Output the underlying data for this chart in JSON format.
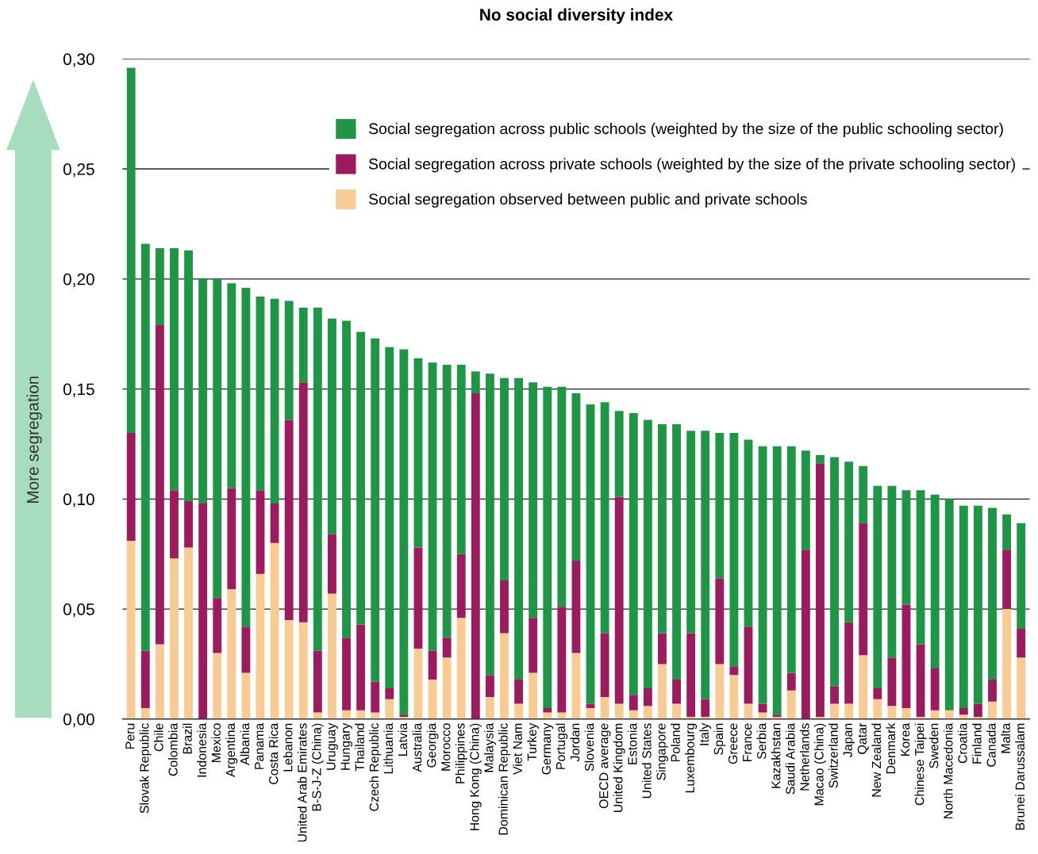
{
  "chart_data": {
    "type": "bar",
    "stacked": true,
    "title": "No social diversity index",
    "categories": [
      "Peru",
      "Slovak Republic",
      "Chile",
      "Colombia",
      "Brazil",
      "Indonesia",
      "Mexico",
      "Argentina",
      "Albania",
      "Panama",
      "Costa Rica",
      "Lebanon",
      "United Arab Emirates",
      "B-S-J-Z (China)",
      "Uruguay",
      "Hungary",
      "Thailand",
      "Czech Republic",
      "Lithuania",
      "Latvia",
      "Australia",
      "Georgia",
      "Morocco",
      "Philippines",
      "Hong Kong (China)",
      "Malaysia",
      "Dominican Republic",
      "Viet Nam",
      "Turkey",
      "Germany",
      "Portugal",
      "Jordan",
      "Slovenia",
      "OECD average",
      "United Kingdom",
      "Estonia",
      "United States",
      "Singapore",
      "Poland",
      "Luxembourg",
      "Italy",
      "Spain",
      "Greece",
      "France",
      "Serbia",
      "Kazakhstan",
      "Saudi Arabia",
      "Netherlands",
      "Macao (China)",
      "Switzerland",
      "Japan",
      "Qatar",
      "New Zealand",
      "Denmark",
      "Korea",
      "Chinese Taipei",
      "Sweden",
      "North Macedonia",
      "Croatia",
      "Finland",
      "Canada",
      "Malta",
      "Brunei Darussalam"
    ],
    "series": [
      {
        "name": "Social segregation observed between public and private schools",
        "color": "#f8cb94",
        "values": [
          0.081,
          0.005,
          0.034,
          0.073,
          0.078,
          0,
          0.03,
          0.059,
          0.021,
          0.066,
          0.08,
          0.045,
          0.044,
          0.003,
          0.057,
          0.004,
          0.004,
          0.003,
          0.009,
          0.001,
          0.032,
          0.018,
          0.028,
          0.046,
          0,
          0.01,
          0.039,
          0.007,
          0.021,
          0.003,
          0.003,
          0.03,
          0.005,
          0.01,
          0.007,
          0.004,
          0.006,
          0.025,
          0.007,
          0.001,
          0.001,
          0.025,
          0.02,
          0.007,
          0.003,
          0.001,
          0.013,
          0,
          0.001,
          0.007,
          0.007,
          0.029,
          0.009,
          0.006,
          0.005,
          0.001,
          0.004,
          0.004,
          0.002,
          0.001,
          0.008,
          0.05,
          0.028
        ]
      },
      {
        "name": "Social segregation across private schools (weighted by the size of the private schooling sector)",
        "color": "#9c1a5e",
        "values": [
          0.049,
          0.026,
          0.145,
          0.031,
          0.021,
          0.098,
          0.025,
          0.046,
          0.021,
          0.038,
          0.018,
          0.091,
          0.109,
          0.028,
          0.027,
          0.033,
          0.039,
          0.014,
          0.005,
          0.001,
          0.046,
          0.013,
          0.009,
          0.029,
          0.148,
          0.01,
          0.024,
          0.011,
          0.025,
          0.002,
          0.048,
          0.042,
          0.002,
          0.029,
          0.094,
          0.007,
          0.008,
          0.014,
          0.011,
          0.038,
          0.008,
          0.039,
          0.004,
          0.035,
          0.004,
          0.001,
          0.008,
          0.077,
          0.115,
          0.008,
          0.037,
          0.06,
          0.005,
          0.022,
          0.047,
          0.033,
          0.019,
          0,
          0.003,
          0.006,
          0.01,
          0.027,
          0.013
        ]
      },
      {
        "name": "Social segregation across public schools (weighted by the size of the public schooling sector)",
        "color": "#1e9646",
        "values": [
          0.166,
          0.185,
          0.035,
          0.11,
          0.114,
          0.102,
          0.145,
          0.093,
          0.154,
          0.088,
          0.093,
          0.054,
          0.034,
          0.156,
          0.098,
          0.144,
          0.133,
          0.156,
          0.155,
          0.166,
          0.086,
          0.131,
          0.124,
          0.086,
          0.01,
          0.137,
          0.092,
          0.137,
          0.107,
          0.146,
          0.1,
          0.076,
          0.136,
          0.105,
          0.039,
          0.128,
          0.122,
          0.095,
          0.116,
          0.092,
          0.122,
          0.066,
          0.106,
          0.085,
          0.117,
          0.122,
          0.103,
          0.045,
          0.004,
          0.104,
          0.073,
          0.026,
          0.092,
          0.078,
          0.052,
          0.07,
          0.079,
          0.096,
          0.092,
          0.09,
          0.078,
          0.016,
          0.048
        ]
      }
    ],
    "ylim": [
      0,
      0.3
    ],
    "yticks": [
      {
        "value": 0,
        "label": "0,00"
      },
      {
        "value": 0.05,
        "label": "0,05"
      },
      {
        "value": 0.1,
        "label": "0,10"
      },
      {
        "value": 0.15,
        "label": "0,15"
      },
      {
        "value": 0.2,
        "label": "0,20"
      },
      {
        "value": 0.25,
        "label": "0,25"
      },
      {
        "value": 0.3,
        "label": "0,30"
      }
    ],
    "grid": "y",
    "legend": "top right",
    "annotations": [
      "More segregation"
    ]
  }
}
